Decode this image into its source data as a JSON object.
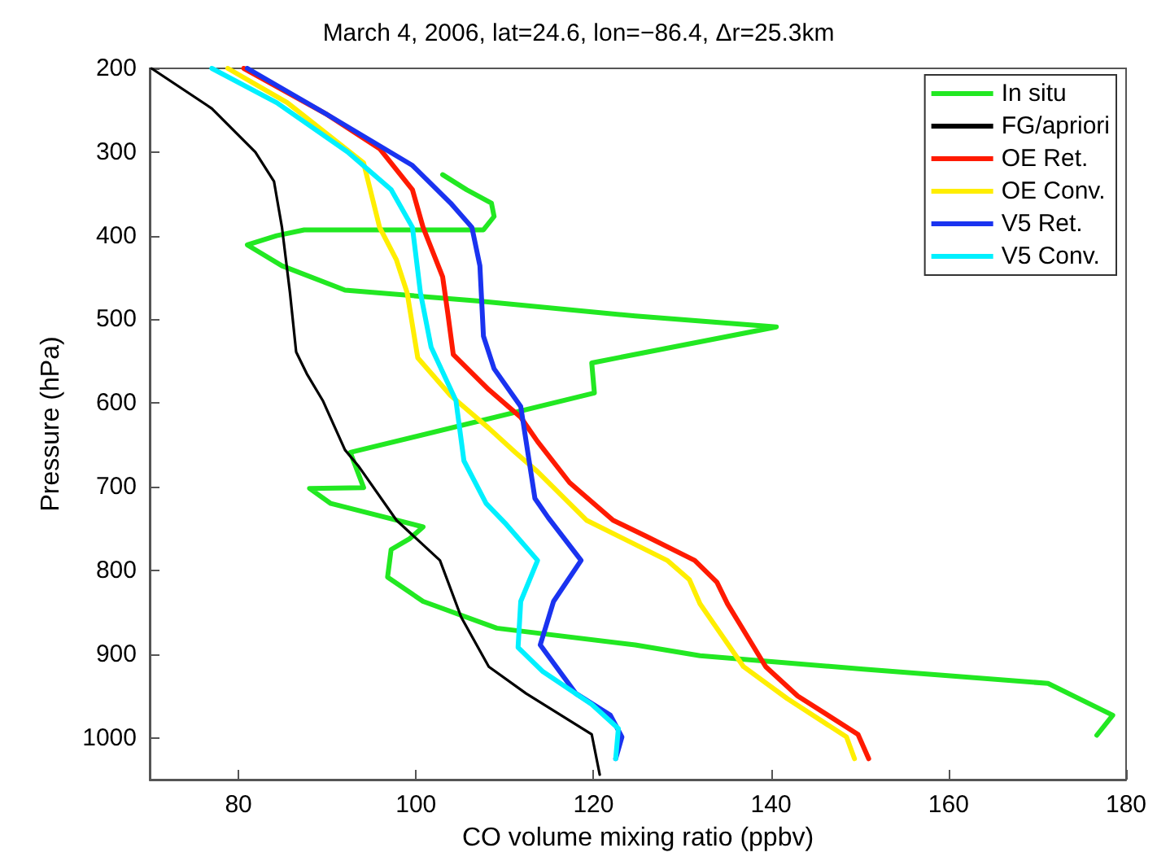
{
  "chart_data": {
    "type": "line",
    "title": "March 4, 2006, lat=24.6, lon=−86.4, Δr=25.3km",
    "xlabel": "CO volume mixing ratio (ppbv)",
    "ylabel": "Pressure (hPa)",
    "xlim": [
      70,
      180
    ],
    "xticks": [
      80,
      100,
      120,
      140,
      160,
      180
    ],
    "ylim": [
      1050,
      200
    ],
    "yticks": [
      200,
      300,
      400,
      500,
      600,
      700,
      800,
      900,
      1000
    ],
    "grid": false,
    "legend": "top right",
    "marker": "none",
    "line_style": "solid",
    "series": [
      {
        "name": "In situ",
        "color": "#22e822",
        "x": [
          103,
          105.7,
          108.5,
          108.8,
          107.6,
          87.4,
          84.3,
          81,
          84.9,
          92,
          106.9,
          124.7,
          140.6,
          119.8,
          120.1,
          92.6,
          94.1,
          88,
          90.4,
          100.8,
          99.3,
          97.2,
          96.8,
          100.8,
          109.1,
          124.7,
          132,
          150.4,
          171.2,
          178.5,
          176.7
        ],
        "values": [
          327,
          345,
          361,
          377,
          393,
          393,
          400,
          411,
          436,
          465,
          478,
          496,
          509,
          552,
          588,
          659,
          701,
          702,
          720,
          748,
          762,
          775,
          808,
          837,
          869,
          889,
          902,
          918,
          935,
          973,
          997
        ]
      },
      {
        "name": "FG/apriori",
        "color": "#000000",
        "x": [
          70.2,
          77,
          81.9,
          84,
          84.9,
          85.8,
          86.5,
          87.7,
          89.5,
          92,
          93.5,
          97.8,
          102.7,
          105.1,
          108.2,
          112.4,
          119.8,
          120.7
        ],
        "values": [
          200,
          248,
          300,
          335,
          390,
          468,
          539,
          565,
          597,
          656,
          675,
          740,
          788,
          856,
          915,
          947,
          996,
          1044
        ]
      },
      {
        "name": "OE Ret.",
        "color": "#ff1a00",
        "x": [
          80.6,
          89.8,
          95.9,
          99.6,
          100.8,
          103,
          103.6,
          104.2,
          108.2,
          111.8,
          113.7,
          117.3,
          122.2,
          125.9,
          131.4,
          133.9,
          135.1,
          139.4,
          143,
          149.8,
          151
        ],
        "values": [
          200,
          254,
          296,
          345,
          390,
          449,
          494,
          542,
          584,
          617,
          646,
          695,
          740,
          759,
          788,
          814,
          840,
          915,
          950,
          996,
          1025
        ]
      },
      {
        "name": "OE Conv.",
        "color": "#ffee00",
        "x": [
          78.8,
          85.5,
          94.1,
          95.9,
          97.8,
          99,
          100.2,
          103.9,
          108.2,
          111.2,
          113.7,
          119.2,
          128.3,
          130.8,
          132,
          136.9,
          141.8,
          148.5,
          149.4
        ],
        "values": [
          200,
          241,
          313,
          390,
          429,
          468,
          546,
          591,
          630,
          659,
          682,
          740,
          788,
          811,
          840,
          915,
          953,
          999,
          1025
        ]
      },
      {
        "name": "V5 Ret.",
        "color": "#1a33f0",
        "x": [
          81,
          89.8,
          99.6,
          103.9,
          106.3,
          107.2,
          107.6,
          108.8,
          111.8,
          113.4,
          114.9,
          118.6,
          115.5,
          114,
          118,
          121.9,
          123.2,
          122.5
        ],
        "values": [
          200,
          254,
          316,
          361,
          390,
          436,
          520,
          559,
          604,
          714,
          737,
          788,
          837,
          889,
          947,
          973,
          999,
          1025
        ]
      },
      {
        "name": "V5 Conv.",
        "color": "#00f0ff",
        "x": [
          77,
          84.3,
          92.3,
          97.2,
          99.6,
          100.5,
          101.7,
          104.5,
          105.4,
          107.9,
          110,
          113.7,
          111.8,
          111.5,
          114.3,
          119.8,
          122.8,
          122.5
        ],
        "values": [
          200,
          241,
          300,
          345,
          390,
          468,
          533,
          597,
          669,
          720,
          743,
          788,
          837,
          892,
          921,
          960,
          989,
          1025
        ]
      }
    ]
  }
}
